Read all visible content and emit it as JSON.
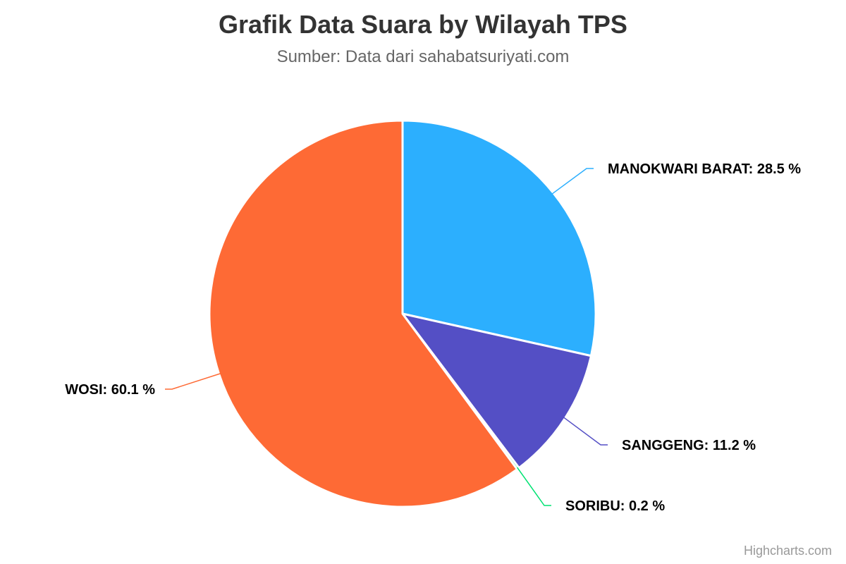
{
  "chart_data": {
    "type": "pie",
    "title": "Grafik Data Suara by Wilayah TPS",
    "subtitle": "Sumber: Data dari sahabatsuriyati.com",
    "credits": "Highcharts.com",
    "slices": [
      {
        "name": "MANOKWARI BARAT",
        "value": 28.5,
        "label": "MANOKWARI BARAT: 28.5 %",
        "color": "#2caffe"
      },
      {
        "name": "SANGGENG",
        "value": 11.2,
        "label": "SANGGENG: 11.2 %",
        "color": "#544fc5"
      },
      {
        "name": "SORIBU",
        "value": 0.2,
        "label": "SORIBU: 0.2 %",
        "color": "#00e272"
      },
      {
        "name": "WOSI",
        "value": 60.1,
        "label": "WOSI: 60.1 %",
        "color": "#fe6a35"
      }
    ]
  }
}
